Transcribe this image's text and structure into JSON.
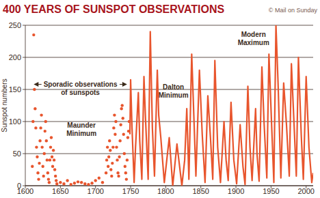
{
  "chart_data": {
    "type": "line",
    "title": "400 YEARS OF SUNSPOT OBSERVATIONS",
    "source": "© Mail on Sunday",
    "y_label": "Sunspot numbers",
    "xlim": [
      1600,
      2010
    ],
    "xticks": [
      1600,
      1650,
      1700,
      1750,
      1800,
      1850,
      1900,
      1950,
      2000
    ],
    "ylim": [
      0,
      250
    ],
    "yticks": [
      0,
      50,
      100,
      150,
      200,
      250
    ],
    "grid": true,
    "annotations": [
      {
        "text": "Sporadic observations of sunspots",
        "x": 1612,
        "x_end": 1745,
        "y": 158
      },
      {
        "text": "Maunder Minimum",
        "x": 1680,
        "y": 90
      },
      {
        "text": "Dalton Minimum",
        "x": 1811,
        "y": 150
      },
      {
        "text": "Modern Maximum",
        "x": 1925,
        "y": 232
      }
    ],
    "series": [
      {
        "type": "scatter",
        "marker": "circle",
        "color": "#e8552d",
        "x": [
          1610,
          1611,
          1612,
          1613,
          1614,
          1615,
          1616,
          1617,
          1618,
          1619,
          1620,
          1621,
          1622,
          1623,
          1624,
          1625,
          1626,
          1627,
          1628,
          1629,
          1630,
          1631,
          1632,
          1633,
          1634,
          1635,
          1636,
          1637,
          1638,
          1639,
          1640,
          1641,
          1642,
          1643,
          1644,
          1645,
          1650,
          1655,
          1660,
          1665,
          1670,
          1675,
          1680,
          1685,
          1690,
          1695,
          1700,
          1705,
          1710,
          1715,
          1716,
          1717,
          1718,
          1719,
          1720,
          1721,
          1722,
          1723,
          1724,
          1725,
          1726,
          1727,
          1728,
          1729,
          1730,
          1731,
          1732,
          1733,
          1734,
          1735,
          1736,
          1737,
          1738,
          1739,
          1740,
          1741,
          1742,
          1743,
          1744,
          1745,
          1746,
          1747,
          1748
        ],
        "values": [
          30,
          100,
          235,
          150,
          120,
          90,
          60,
          45,
          20,
          10,
          35,
          70,
          90,
          110,
          60,
          30,
          15,
          50,
          85,
          100,
          70,
          40,
          20,
          10,
          5,
          40,
          60,
          75,
          45,
          30,
          55,
          40,
          25,
          15,
          8,
          3,
          5,
          3,
          8,
          2,
          4,
          6,
          5,
          3,
          2,
          4,
          8,
          12,
          5,
          20,
          40,
          60,
          30,
          45,
          70,
          55,
          25,
          15,
          35,
          60,
          90,
          110,
          80,
          100,
          60,
          40,
          20,
          15,
          45,
          70,
          95,
          120,
          125,
          105,
          80,
          50,
          30,
          20,
          10,
          40,
          75,
          85,
          100
        ]
      },
      {
        "type": "line",
        "color": "#e8552d",
        "x": [
          1749,
          1750,
          1752,
          1755,
          1757,
          1761,
          1763,
          1766,
          1769,
          1771,
          1775,
          1778,
          1781,
          1784,
          1788,
          1790,
          1793,
          1798,
          1802,
          1805,
          1810,
          1816,
          1823,
          1827,
          1830,
          1833,
          1837,
          1840,
          1843,
          1848,
          1852,
          1856,
          1860,
          1864,
          1867,
          1870,
          1874,
          1878,
          1883,
          1886,
          1889,
          1893,
          1897,
          1901,
          1906,
          1910,
          1913,
          1917,
          1920,
          1923,
          1928,
          1930,
          1933,
          1937,
          1940,
          1944,
          1947,
          1951,
          1954,
          1957,
          1960,
          1964,
          1968,
          1972,
          1976,
          1979,
          1983,
          1986,
          1989,
          1993,
          1996,
          2000,
          2004,
          2008,
          2010
        ],
        "values": [
          80,
          165,
          90,
          5,
          60,
          145,
          70,
          10,
          170,
          110,
          10,
          240,
          90,
          15,
          180,
          110,
          75,
          5,
          45,
          75,
          0,
          65,
          0,
          40,
          120,
          10,
          205,
          110,
          15,
          180,
          80,
          5,
          140,
          70,
          10,
          195,
          60,
          5,
          100,
          40,
          8,
          130,
          40,
          3,
          95,
          30,
          2,
          155,
          60,
          8,
          120,
          50,
          7,
          185,
          100,
          12,
          205,
          90,
          5,
          250,
          160,
          12,
          160,
          95,
          15,
          190,
          90,
          15,
          200,
          80,
          10,
          170,
          60,
          5,
          20
        ]
      }
    ]
  }
}
